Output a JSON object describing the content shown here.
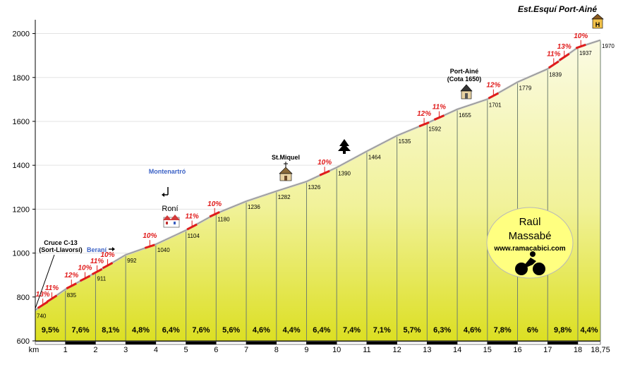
{
  "chart_data": {
    "type": "area",
    "title": "Est.Esquí Port-Ainé",
    "x_unit_label": "km",
    "y_ticks": [
      600,
      800,
      1000,
      1200,
      1400,
      1600,
      1800,
      2000
    ],
    "ylim": [
      600,
      2050
    ],
    "xlim": [
      0,
      18.75
    ],
    "x_ticks": [
      "1",
      "2",
      "3",
      "4",
      "5",
      "6",
      "7",
      "8",
      "9",
      "10",
      "11",
      "12",
      "13",
      "14",
      "15",
      "16",
      "17",
      "18",
      "18,75"
    ],
    "x_tick_values": [
      1,
      2,
      3,
      4,
      5,
      6,
      7,
      8,
      9,
      10,
      11,
      12,
      13,
      14,
      15,
      16,
      17,
      18,
      18.75
    ],
    "points": [
      {
        "x": 0,
        "y": 740,
        "label": "740"
      },
      {
        "x": 1,
        "y": 835,
        "label": "835"
      },
      {
        "x": 2,
        "y": 911,
        "label": "911"
      },
      {
        "x": 3,
        "y": 992,
        "label": "992"
      },
      {
        "x": 4,
        "y": 1040,
        "label": "1040"
      },
      {
        "x": 5,
        "y": 1104,
        "label": "1104"
      },
      {
        "x": 6,
        "y": 1180,
        "label": "1180"
      },
      {
        "x": 7,
        "y": 1236,
        "label": "1236"
      },
      {
        "x": 8,
        "y": 1282,
        "label": "1282"
      },
      {
        "x": 9,
        "y": 1326,
        "label": "1326"
      },
      {
        "x": 10,
        "y": 1390,
        "label": "1390"
      },
      {
        "x": 11,
        "y": 1464,
        "label": "1464"
      },
      {
        "x": 12,
        "y": 1535,
        "label": "1535"
      },
      {
        "x": 13,
        "y": 1592,
        "label": "1592"
      },
      {
        "x": 14,
        "y": 1655,
        "label": "1655"
      },
      {
        "x": 15,
        "y": 1701,
        "label": "1701"
      },
      {
        "x": 16,
        "y": 1779,
        "label": "1779"
      },
      {
        "x": 17,
        "y": 1839,
        "label": "1839"
      },
      {
        "x": 18,
        "y": 1937,
        "label": "1937"
      },
      {
        "x": 18.75,
        "y": 1970,
        "label": "1970"
      }
    ],
    "segment_gradients": [
      "9,5%",
      "7,6%",
      "8,1%",
      "4,8%",
      "6,4%",
      "7,6%",
      "5,6%",
      "4,6%",
      "4,4%",
      "6,4%",
      "7,4%",
      "7,1%",
      "5,7%",
      "6,3%",
      "4,6%",
      "7,8%",
      "6%",
      "9,8%",
      "4,4%"
    ],
    "steep_ramps": [
      {
        "x": 0.25,
        "label": "13%"
      },
      {
        "x": 0.55,
        "label": "11%"
      },
      {
        "x": 1.2,
        "label": "12%"
      },
      {
        "x": 1.65,
        "label": "10%"
      },
      {
        "x": 2.05,
        "label": "11%"
      },
      {
        "x": 2.4,
        "label": "10%"
      },
      {
        "x": 3.8,
        "label": "10%"
      },
      {
        "x": 5.2,
        "label": "11%"
      },
      {
        "x": 5.95,
        "label": "10%"
      },
      {
        "x": 9.6,
        "label": "10%"
      },
      {
        "x": 12.9,
        "label": "12%"
      },
      {
        "x": 13.4,
        "label": "11%"
      },
      {
        "x": 15.2,
        "label": "12%"
      },
      {
        "x": 17.2,
        "label": "11%"
      },
      {
        "x": 17.55,
        "label": "13%"
      },
      {
        "x": 18.1,
        "label": "10%"
      }
    ],
    "places": [
      {
        "key": "cruce",
        "label1": "Cruce C-13",
        "label2": "(Sort-Llavorsí)"
      },
      {
        "key": "berani",
        "label1": "Beraní"
      },
      {
        "key": "montenartro",
        "label1": "Montenartró"
      },
      {
        "key": "roni",
        "label1": "Roní"
      },
      {
        "key": "stmiquel",
        "label1": "St.Miquel"
      },
      {
        "key": "portaine",
        "label1": "Port-Ainé",
        "label2": "(Cota 1650)"
      }
    ],
    "grid": true
  },
  "badge": {
    "name_line1": "Raül",
    "name_line2": "Massabé",
    "website": "www.ramacabici.com"
  }
}
